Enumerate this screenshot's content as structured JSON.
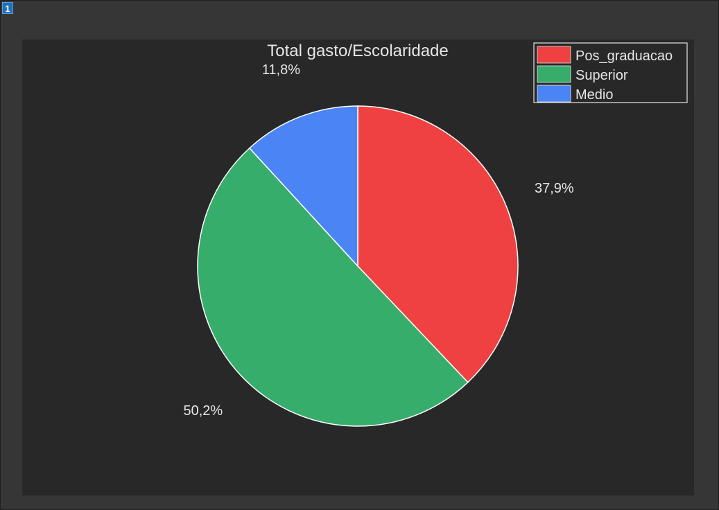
{
  "figure": {
    "badge": "1"
  },
  "colors": {
    "background": "#363636",
    "panel": "#282828",
    "text": "#e6e6e6",
    "edge": "#ffffff"
  },
  "chart_data": {
    "type": "pie",
    "title": "Total gasto/Escolaridade",
    "labels": [
      "Pos_graduacao",
      "Superior",
      "Medio"
    ],
    "values": [
      37.9,
      50.2,
      11.8
    ],
    "value_labels": [
      "37,9%",
      "50,2%",
      "11,8%"
    ],
    "colors": [
      "#ef4141",
      "#37ad6b",
      "#4b85f5"
    ],
    "start_angle_deg": 90,
    "direction": "clockwise",
    "legend": {
      "position": "top-right",
      "entries": [
        "Pos_graduacao",
        "Superior",
        "Medio"
      ]
    }
  }
}
